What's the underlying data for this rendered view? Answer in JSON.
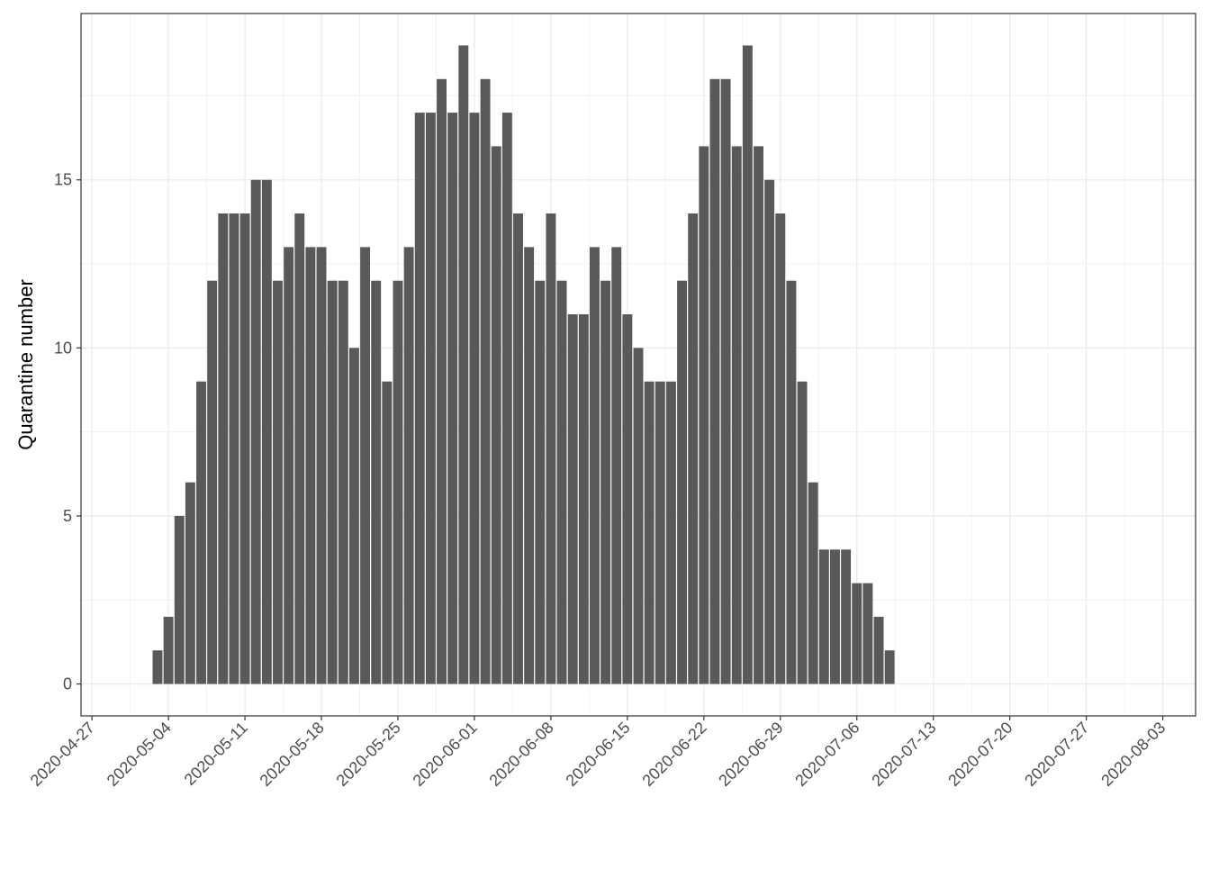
{
  "chart_data": {
    "type": "bar",
    "y_label": "Quarantine number",
    "x": [
      "2020-05-03",
      "2020-05-04",
      "2020-05-05",
      "2020-05-06",
      "2020-05-07",
      "2020-05-08",
      "2020-05-09",
      "2020-05-10",
      "2020-05-11",
      "2020-05-12",
      "2020-05-13",
      "2020-05-14",
      "2020-05-15",
      "2020-05-16",
      "2020-05-17",
      "2020-05-18",
      "2020-05-19",
      "2020-05-20",
      "2020-05-21",
      "2020-05-22",
      "2020-05-23",
      "2020-05-24",
      "2020-05-25",
      "2020-05-26",
      "2020-05-27",
      "2020-05-28",
      "2020-05-29",
      "2020-05-30",
      "2020-05-31",
      "2020-06-01",
      "2020-06-02",
      "2020-06-03",
      "2020-06-04",
      "2020-06-05",
      "2020-06-06",
      "2020-06-07",
      "2020-06-08",
      "2020-06-09",
      "2020-06-10",
      "2020-06-11",
      "2020-06-12",
      "2020-06-13",
      "2020-06-14",
      "2020-06-15",
      "2020-06-16",
      "2020-06-17",
      "2020-06-18",
      "2020-06-19",
      "2020-06-20",
      "2020-06-21",
      "2020-06-22",
      "2020-06-23",
      "2020-06-24",
      "2020-06-25",
      "2020-06-26",
      "2020-06-27",
      "2020-06-28",
      "2020-06-29",
      "2020-06-30",
      "2020-07-01",
      "2020-07-02",
      "2020-07-03",
      "2020-07-04",
      "2020-07-05",
      "2020-07-06",
      "2020-07-07",
      "2020-07-08",
      "2020-07-09"
    ],
    "values": [
      1,
      2,
      5,
      6,
      9,
      12,
      14,
      14,
      14,
      15,
      15,
      12,
      13,
      14,
      13,
      13,
      12,
      12,
      10,
      13,
      12,
      9,
      12,
      13,
      17,
      17,
      18,
      17,
      19,
      17,
      18,
      16,
      17,
      14,
      13,
      12,
      14,
      12,
      11,
      11,
      13,
      12,
      13,
      11,
      10,
      9,
      9,
      9,
      12,
      14,
      16,
      18,
      18,
      16,
      19,
      16,
      15,
      14,
      12,
      9,
      6,
      4,
      4,
      4,
      3,
      3,
      2,
      1
    ],
    "color": "#595959",
    "xlim": [
      "2020-04-26",
      "2020-08-06"
    ],
    "xticks": [
      "2020-04-27",
      "2020-05-04",
      "2020-05-11",
      "2020-05-18",
      "2020-05-25",
      "2020-06-01",
      "2020-06-08",
      "2020-06-15",
      "2020-06-22",
      "2020-06-29",
      "2020-07-06",
      "2020-07-13",
      "2020-07-20",
      "2020-07-27",
      "2020-08-03"
    ],
    "ylim": [
      -0.95,
      19.95
    ],
    "yticks": [
      0,
      5,
      10,
      15
    ],
    "grid": true
  }
}
